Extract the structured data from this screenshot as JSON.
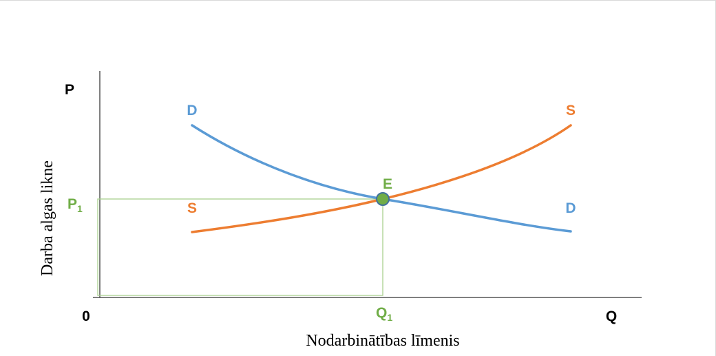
{
  "chart_data": {
    "type": "line",
    "title": "",
    "xlabel": "Nodarbinātības līmenis",
    "ylabel": "Darba algas likne",
    "x_axis_end_label": "Q",
    "y_axis_end_label": "P",
    "origin_label": "0",
    "equilibrium": {
      "label": "E",
      "price_label": {
        "base": "P",
        "sub": "1"
      },
      "quantity_label": {
        "base": "Q",
        "sub": "1"
      },
      "color": "#70ad47"
    },
    "series": [
      {
        "name": "D",
        "start_label": "D",
        "end_label": "D",
        "color": "#5b9bd5",
        "shape": "decreasing-convex"
      },
      {
        "name": "S",
        "start_label": "S",
        "end_label": "S",
        "color": "#ed7d31",
        "shape": "increasing-convex"
      }
    ],
    "grid": false,
    "legend": "none"
  }
}
